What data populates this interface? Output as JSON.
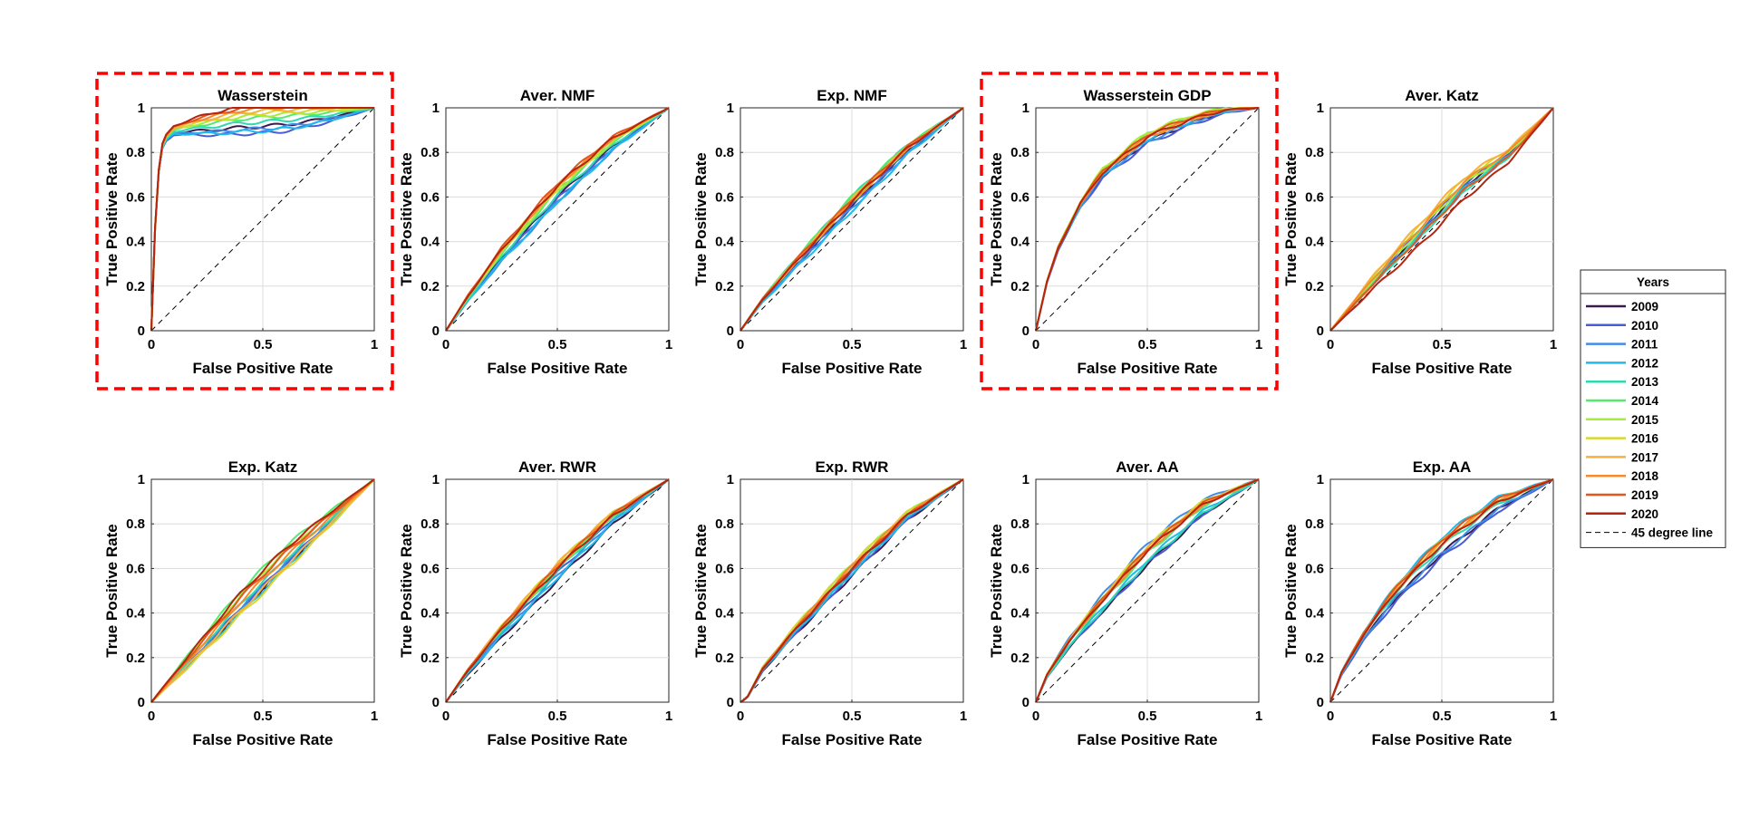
{
  "chart_data": {
    "type": "line",
    "description_layout": "2x5 grid of ROC curves",
    "xlabel": "False Positive Rate",
    "ylabel": "True Positive Rate",
    "xlim": [
      0,
      1
    ],
    "ylim": [
      0,
      1
    ],
    "xticks": [
      "0",
      "0.5",
      "1"
    ],
    "yticks": [
      "0",
      "0.2",
      "0.4",
      "0.6",
      "0.8",
      "1"
    ],
    "grid": true,
    "legend": {
      "title": "Years",
      "placement": "right",
      "entries": [
        "2009",
        "2010",
        "2011",
        "2012",
        "2013",
        "2014",
        "2015",
        "2016",
        "2017",
        "2018",
        "2019",
        "2020",
        "45 degree line"
      ],
      "colors": [
        "#3b1a4f",
        "#4a5bd8",
        "#3f8ee6",
        "#1fb9ec",
        "#2ed9b0",
        "#55ea6f",
        "#a6ec3a",
        "#d8d632",
        "#f6b13c",
        "#f58a2e",
        "#e4561c",
        "#b5240f",
        "#000000"
      ]
    },
    "reference_line": {
      "name": "45 degree line",
      "points": [
        [
          0,
          0
        ],
        [
          1,
          1
        ]
      ],
      "style": "dashed"
    },
    "panels": [
      {
        "title": "Wasserstein",
        "highlighted": true,
        "base": [
          [
            0,
            0
          ],
          [
            0.02,
            0.55
          ],
          [
            0.04,
            0.8
          ],
          [
            0.06,
            0.86
          ],
          [
            0.1,
            0.9
          ],
          [
            0.2,
            0.92
          ],
          [
            0.4,
            0.95
          ],
          [
            0.7,
            0.97
          ],
          [
            1,
            1
          ]
        ],
        "spread": [
          -0.04,
          -0.07,
          -0.05,
          -0.06,
          -0.02,
          0.0,
          0.01,
          0.02,
          0.03,
          0.04,
          0.05,
          0.06
        ]
      },
      {
        "title": "Aver. NMF",
        "highlighted": false,
        "base": [
          [
            0,
            0
          ],
          [
            0.1,
            0.15
          ],
          [
            0.25,
            0.35
          ],
          [
            0.5,
            0.63
          ],
          [
            0.75,
            0.85
          ],
          [
            1,
            1
          ]
        ],
        "spread": [
          -0.03,
          -0.04,
          -0.05,
          -0.05,
          -0.02,
          0.0,
          0.0,
          0.01,
          0.02,
          0.02,
          0.03,
          0.02
        ]
      },
      {
        "title": "Exp. NMF",
        "highlighted": false,
        "base": [
          [
            0,
            0
          ],
          [
            0.1,
            0.14
          ],
          [
            0.25,
            0.31
          ],
          [
            0.5,
            0.58
          ],
          [
            0.75,
            0.82
          ],
          [
            1,
            1
          ]
        ],
        "spread": [
          -0.02,
          -0.02,
          -0.03,
          -0.04,
          0.02,
          0.02,
          0.0,
          0.01,
          0.01,
          0.0,
          0.01,
          0.0
        ]
      },
      {
        "title": "Wasserstein GDP",
        "highlighted": true,
        "base": [
          [
            0,
            0
          ],
          [
            0.05,
            0.22
          ],
          [
            0.1,
            0.37
          ],
          [
            0.2,
            0.57
          ],
          [
            0.3,
            0.71
          ],
          [
            0.5,
            0.87
          ],
          [
            0.7,
            0.95
          ],
          [
            0.85,
            0.99
          ],
          [
            1,
            1
          ]
        ],
        "spread": [
          -0.02,
          -0.03,
          -0.02,
          -0.01,
          0.0,
          0.01,
          0.02,
          0.01,
          0.0,
          0.0,
          0.01,
          0.0
        ]
      },
      {
        "title": "Aver. Katz",
        "highlighted": false,
        "base": [
          [
            0,
            0
          ],
          [
            0.2,
            0.22
          ],
          [
            0.4,
            0.42
          ],
          [
            0.6,
            0.63
          ],
          [
            0.8,
            0.78
          ],
          [
            1,
            1
          ]
        ],
        "spread": [
          0.02,
          0.03,
          0.0,
          0.01,
          0.0,
          0.04,
          0.03,
          0.05,
          0.06,
          0.04,
          0.0,
          -0.04
        ]
      },
      {
        "title": "Exp. Katz",
        "highlighted": false,
        "base": [
          [
            0,
            0
          ],
          [
            0.2,
            0.22
          ],
          [
            0.4,
            0.44
          ],
          [
            0.6,
            0.64
          ],
          [
            0.8,
            0.82
          ],
          [
            1,
            1
          ]
        ],
        "spread": [
          -0.03,
          -0.02,
          -0.02,
          -0.04,
          0.0,
          0.06,
          0.04,
          -0.05,
          -0.03,
          0.01,
          0.03,
          0.05
        ]
      },
      {
        "title": "Aver. RWR",
        "highlighted": false,
        "base": [
          [
            0,
            0
          ],
          [
            0.1,
            0.14
          ],
          [
            0.25,
            0.32
          ],
          [
            0.5,
            0.59
          ],
          [
            0.75,
            0.83
          ],
          [
            1,
            1
          ]
        ],
        "spread": [
          -0.04,
          -0.01,
          -0.02,
          -0.03,
          0.0,
          0.01,
          0.02,
          0.03,
          0.03,
          0.02,
          0.02,
          0.01
        ]
      },
      {
        "title": "Exp. RWR",
        "highlighted": false,
        "base": [
          [
            0,
            0
          ],
          [
            0.03,
            0.02
          ],
          [
            0.1,
            0.15
          ],
          [
            0.25,
            0.33
          ],
          [
            0.5,
            0.6
          ],
          [
            0.75,
            0.84
          ],
          [
            1,
            1
          ]
        ],
        "spread": [
          -0.03,
          -0.02,
          -0.01,
          -0.02,
          0.0,
          0.01,
          0.02,
          0.02,
          0.01,
          0.01,
          0.0,
          0.0
        ]
      },
      {
        "title": "Aver. AA",
        "highlighted": false,
        "base": [
          [
            0,
            0
          ],
          [
            0.05,
            0.12
          ],
          [
            0.15,
            0.27
          ],
          [
            0.3,
            0.45
          ],
          [
            0.5,
            0.67
          ],
          [
            0.75,
            0.88
          ],
          [
            1,
            1
          ]
        ],
        "spread": [
          -0.05,
          -0.05,
          0.04,
          -0.03,
          -0.04,
          0.0,
          0.02,
          0.03,
          0.02,
          0.01,
          0.02,
          0.01
        ]
      },
      {
        "title": "Exp. AA",
        "highlighted": false,
        "base": [
          [
            0,
            0
          ],
          [
            0.05,
            0.13
          ],
          [
            0.15,
            0.3
          ],
          [
            0.3,
            0.5
          ],
          [
            0.5,
            0.7
          ],
          [
            0.75,
            0.89
          ],
          [
            1,
            1
          ]
        ],
        "spread": [
          -0.03,
          -0.05,
          -0.03,
          0.04,
          0.0,
          0.02,
          0.03,
          0.01,
          0.02,
          0.02,
          0.03,
          0.01
        ]
      }
    ]
  }
}
